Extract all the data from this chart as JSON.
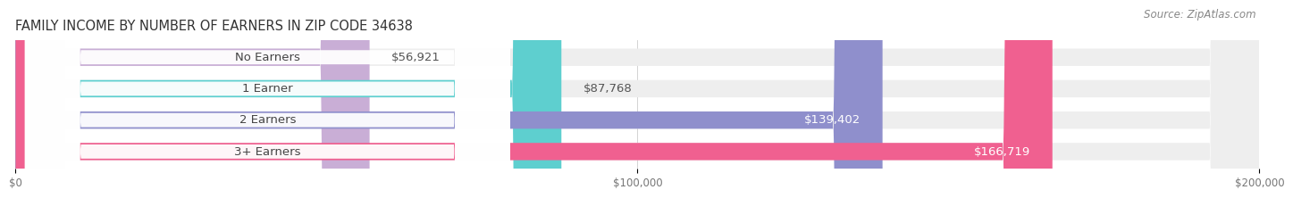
{
  "title": "FAMILY INCOME BY NUMBER OF EARNERS IN ZIP CODE 34638",
  "source": "Source: ZipAtlas.com",
  "categories": [
    "No Earners",
    "1 Earner",
    "2 Earners",
    "3+ Earners"
  ],
  "values": [
    56921,
    87768,
    139402,
    166719
  ],
  "value_labels": [
    "$56,921",
    "$87,768",
    "$139,402",
    "$166,719"
  ],
  "bar_colors": [
    "#c9aed6",
    "#5ecfcf",
    "#8f8fcc",
    "#f06090"
  ],
  "bar_bg_color": "#eeeeee",
  "label_bg_color": "#ffffff",
  "value_label_colors": [
    "#555555",
    "#555555",
    "#ffffff",
    "#ffffff"
  ],
  "xlim": [
    0,
    200000
  ],
  "xticks": [
    0,
    100000,
    200000
  ],
  "xtick_labels": [
    "$0",
    "$100,000",
    "$200,000"
  ],
  "bg_color": "#ffffff",
  "title_fontsize": 10.5,
  "source_fontsize": 8.5,
  "cat_fontsize": 9.5,
  "val_fontsize": 9.5,
  "tick_fontsize": 8.5
}
